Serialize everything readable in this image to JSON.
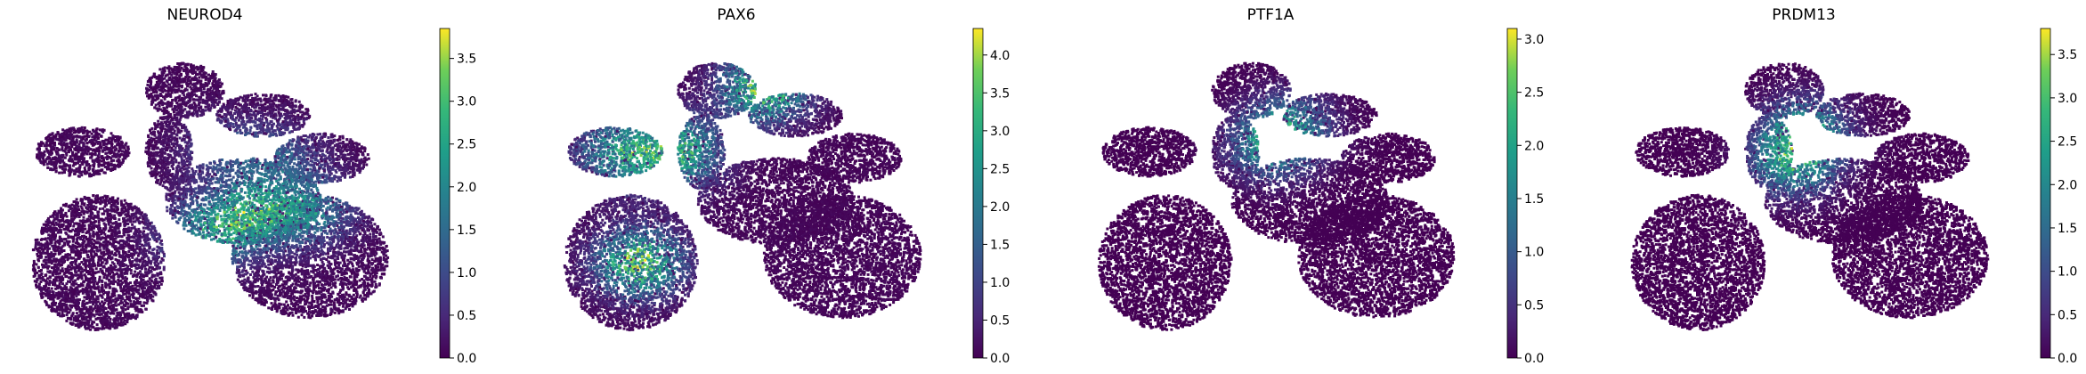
{
  "figure": {
    "background": "#ffffff"
  },
  "chart_data": [
    {
      "type": "scatter",
      "title": "NEUROD4",
      "colormap": "viridis",
      "colorbar": {
        "min": 0,
        "max": 3.85,
        "ticks": [
          0.0,
          0.5,
          1.0,
          1.5,
          2.0,
          2.5,
          3.0,
          3.5
        ],
        "tick_labels": [
          "0.0",
          "0.5",
          "1.0",
          "1.5",
          "2.0",
          "2.5",
          "3.0",
          "3.5"
        ]
      },
      "axes_visible": false,
      "high_regions": [
        [
          0.57,
          0.56,
          0.55
        ],
        [
          0.45,
          0.63,
          0.45
        ],
        [
          0.72,
          0.55,
          0.4
        ],
        [
          0.5,
          0.35,
          0.2
        ],
        [
          0.64,
          0.38,
          0.25
        ]
      ],
      "base_level": 0.04
    },
    {
      "type": "scatter",
      "title": "PAX6",
      "colormap": "viridis",
      "colorbar": {
        "min": 0,
        "max": 4.35,
        "ticks": [
          0.0,
          0.5,
          1.0,
          1.5,
          2.0,
          2.5,
          3.0,
          3.5,
          4.0
        ],
        "tick_labels": [
          "0.0",
          "0.5",
          "1.0",
          "1.5",
          "2.0",
          "2.5",
          "3.0",
          "3.5",
          "4.0"
        ]
      },
      "axes_visible": false,
      "high_regions": [
        [
          0.2,
          0.72,
          0.7
        ],
        [
          0.52,
          0.15,
          0.7
        ],
        [
          0.3,
          0.36,
          0.6
        ],
        [
          0.15,
          0.36,
          0.5
        ]
      ],
      "base_level": 0.03
    },
    {
      "type": "scatter",
      "title": "PTF1A",
      "colormap": "viridis",
      "colorbar": {
        "min": 0,
        "max": 3.1,
        "ticks": [
          0.0,
          0.5,
          1.0,
          1.5,
          2.0,
          2.5,
          3.0
        ],
        "tick_labels": [
          "0.0",
          "0.5",
          "1.0",
          "1.5",
          "2.0",
          "2.5",
          "3.0"
        ]
      },
      "axes_visible": false,
      "high_regions": [
        [
          0.45,
          0.34,
          0.45
        ],
        [
          0.5,
          0.27,
          0.35
        ]
      ],
      "base_level": 0.0
    },
    {
      "type": "scatter",
      "title": "PRDM13",
      "colormap": "viridis",
      "colorbar": {
        "min": 0,
        "max": 3.8,
        "ticks": [
          0.0,
          0.5,
          1.0,
          1.5,
          2.0,
          2.5,
          3.0,
          3.5
        ],
        "tick_labels": [
          "0.0",
          "0.5",
          "1.0",
          "1.5",
          "2.0",
          "2.5",
          "3.0",
          "3.5"
        ]
      },
      "axes_visible": false,
      "high_regions": [
        [
          0.45,
          0.3,
          0.55
        ],
        [
          0.42,
          0.4,
          0.45
        ]
      ],
      "base_level": 0.0
    }
  ]
}
